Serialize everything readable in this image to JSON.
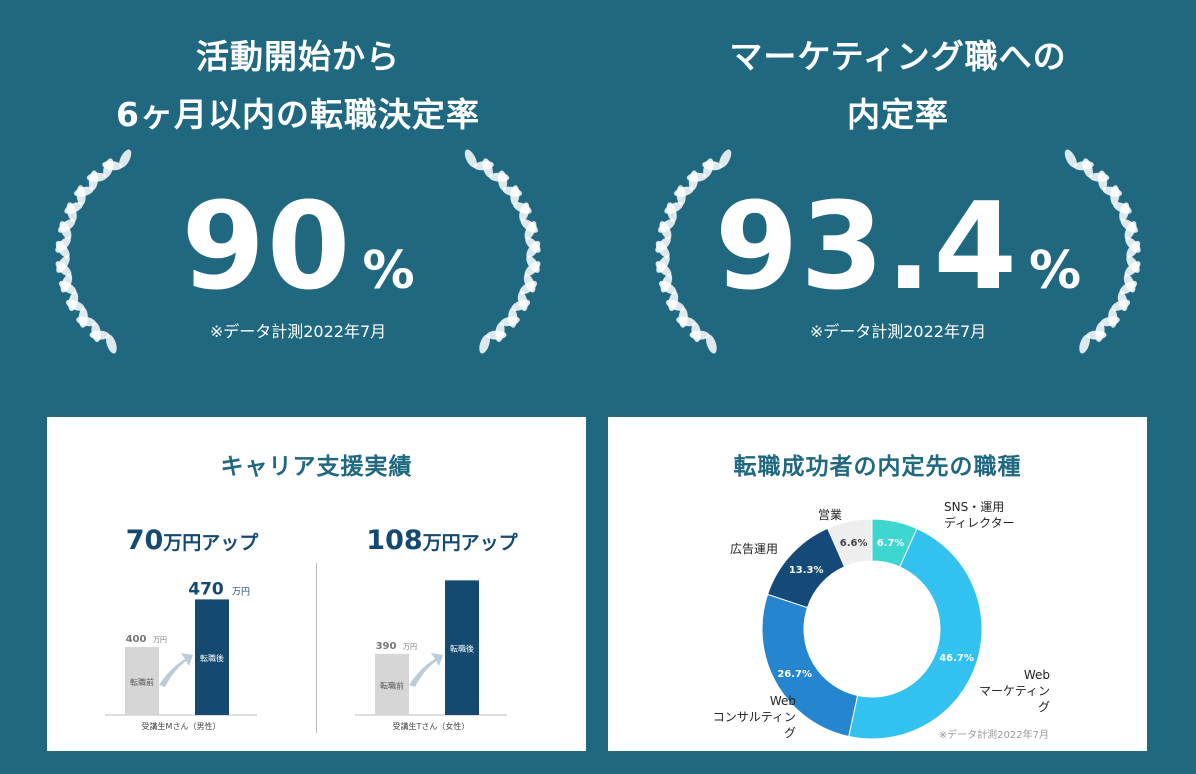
{
  "stats": [
    {
      "title_line1": "活動開始から",
      "title_line2": "6ヶ月以内の転職決定率",
      "value": "90",
      "unit": "%",
      "note": "※データ計測2022年7月"
    },
    {
      "title_line1": "マーケティング職への",
      "title_line2": "内定率",
      "value": "93.4",
      "unit": "%",
      "note": "※データ計測2022年7月"
    }
  ],
  "career_card": {
    "title": "キャリア支援実績",
    "comparisons": [
      {
        "headline_num": "70",
        "headline_suffix": "万円アップ",
        "before_label": "転職前",
        "after_label": "転職後",
        "caption": "受講生Mさん（男性）",
        "unit": "万円"
      },
      {
        "headline_num": "108",
        "headline_suffix": "万円アップ",
        "before_label": "転職前",
        "after_label": "転職後",
        "caption": "受講生Tさん（女性）",
        "unit": "万円"
      }
    ]
  },
  "donut_card": {
    "title": "転職成功者の内定先の職種",
    "note": "※データ計測2022年7月",
    "labels": {
      "eigyo": "営業",
      "sns_1": "SNS・運用",
      "sns_2": "ディレクター",
      "kokoku": "広告運用",
      "web_mkt_1": "Web",
      "web_mkt_2": "マーケティング",
      "web_con_1": "Web",
      "web_con_2": "コンサルティング"
    }
  },
  "colors": {
    "background": "#1f6880",
    "navy": "#154a70",
    "gray_bar": "#d6d6d6",
    "sns": "#3fd6d0",
    "web_marketing": "#33c2ef",
    "web_consulting": "#2585cf",
    "ad_ops": "#154a78",
    "sales": "#eeeeee"
  },
  "chart_data": [
    {
      "type": "bar",
      "categories": [
        "転職前",
        "転職後"
      ],
      "values": [
        400,
        470
      ],
      "unit": "万円",
      "caption": "受講生Mさん（男性）"
    },
    {
      "type": "bar",
      "categories": [
        "転職前",
        "転職後"
      ],
      "values": [
        390,
        498
      ],
      "unit": "万円",
      "caption": "受講生Tさん（女性）"
    },
    {
      "type": "pie",
      "title": "転職成功者の内定先の職種",
      "categories": [
        "SNS・運用ディレクター",
        "Webマーケティング",
        "Webコンサルティング",
        "広告運用",
        "営業"
      ],
      "values": [
        6.7,
        46.7,
        26.7,
        13.3,
        6.6
      ],
      "unit": "%"
    }
  ]
}
